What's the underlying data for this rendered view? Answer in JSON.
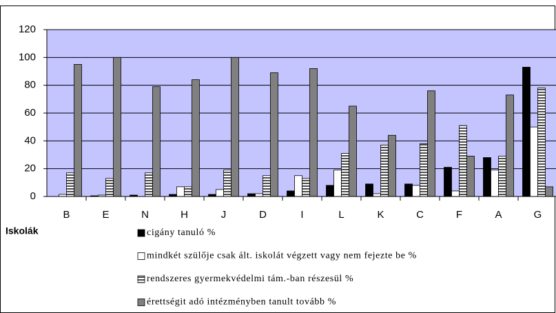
{
  "chart_data": {
    "type": "bar",
    "x_label": "Iskolák",
    "categories": [
      "B",
      "E",
      "N",
      "H",
      "J",
      "D",
      "I",
      "L",
      "K",
      "C",
      "F",
      "A",
      "G"
    ],
    "series": [
      {
        "name": "cigány tanuló %",
        "color": "#000000",
        "values": [
          0,
          0.5,
          1,
          1.5,
          1.5,
          2,
          4,
          8,
          9,
          9,
          21,
          28,
          93
        ]
      },
      {
        "name": "mindkét szülője csak ált. iskolát végzett vagy nem fejezte be %",
        "color": "#ffffff",
        "values": [
          1.5,
          1,
          0,
          7,
          5,
          2,
          15,
          19,
          2,
          8,
          4,
          19,
          50
        ]
      },
      {
        "name": "rendszeres gyermekvédelmi tám.-ban részesül %",
        "color": "#ffffff",
        "pattern": "horizontal-stripes",
        "values": [
          17,
          13,
          17,
          7,
          19,
          15,
          13,
          31,
          37,
          38,
          51,
          29,
          78
        ]
      },
      {
        "name": "érettségit adó intézményben tanult tovább %",
        "color": "#808080",
        "values": [
          95,
          100,
          79,
          84,
          100,
          89,
          92,
          65,
          44,
          76,
          29,
          73,
          7
        ]
      }
    ],
    "ylim": [
      0,
      120
    ],
    "yticks": [
      0,
      20,
      40,
      60,
      80,
      100,
      120
    ],
    "grid": true,
    "plot_background": "#c4c4ff"
  }
}
